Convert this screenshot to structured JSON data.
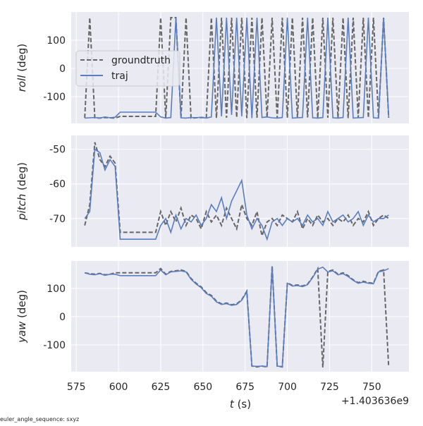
{
  "chart_data": {
    "type": "line",
    "xlabel": "t (s)",
    "x_offset_label": "+1.403636e9",
    "footnote": "euler_angle_sequence: sxyz",
    "xlim": [
      572,
      772
    ],
    "xticks": [
      575,
      600,
      625,
      650,
      675,
      700,
      725,
      750
    ],
    "t_start": 580,
    "t_step": 3,
    "legend": {
      "position": "upper-left",
      "entries": [
        "groundtruth",
        "traj"
      ]
    },
    "colors": {
      "groundtruth": "#666666",
      "traj": "#5a7dbf",
      "background": "#eaeaf2",
      "grid": "#ffffff"
    },
    "panels": [
      {
        "ylabel": "roll (deg)",
        "ylim": [
          -195,
          200
        ],
        "yticks": [
          100,
          0,
          -100
        ],
        "groundtruth": [
          -175,
          180,
          -175,
          -176,
          -174,
          -175,
          -176,
          -170,
          -170,
          -170,
          -170,
          -170,
          -170,
          -170,
          -170,
          180,
          -175,
          180,
          180,
          -175,
          180,
          -176,
          -175,
          -174,
          -175,
          180,
          -176,
          180,
          -175,
          180,
          -174,
          180,
          -176,
          180,
          -175,
          180,
          -175,
          180,
          -176,
          180,
          -175,
          180,
          -175,
          180,
          -174,
          180,
          -176,
          180,
          -175,
          180,
          -175,
          180,
          -176,
          180,
          -175,
          180,
          -175,
          180,
          -176,
          180,
          -175
        ],
        "traj": [
          -176,
          -175,
          -174,
          -176,
          -172,
          -175,
          -173,
          -155,
          -155,
          -155,
          -155,
          -155,
          -155,
          -155,
          -155,
          -172,
          -176,
          -174,
          180,
          -175,
          -176,
          -174,
          -175,
          -173,
          -176,
          -172,
          180,
          -170,
          180,
          -165,
          180,
          -170,
          180,
          -176,
          180,
          -174,
          -172,
          -175,
          -176,
          -174,
          180,
          -176,
          -175,
          -174,
          180,
          -175,
          -176,
          -174,
          180,
          -175,
          -176,
          -174,
          180,
          -176,
          -175,
          -174,
          180,
          -175,
          -176,
          180,
          -172
        ]
      },
      {
        "ylabel": "pitch (deg)",
        "ylim": [
          -78.2,
          -46
        ],
        "yticks": [
          -50,
          -60,
          -70
        ],
        "groundtruth": [
          -72,
          -66,
          -48,
          -53,
          -55,
          -52,
          -54,
          -74,
          -74,
          -74,
          -74,
          -74,
          -74,
          -74,
          -74,
          -68,
          -72,
          -68,
          -71,
          -67,
          -72,
          -69,
          -70,
          -73,
          -68,
          -71,
          -69,
          -72,
          -67,
          -70,
          -73,
          -66,
          -70,
          -72,
          -68,
          -75,
          -71,
          -70,
          -72,
          -69,
          -70,
          -71,
          -68,
          -73,
          -70,
          -72,
          -69,
          -71,
          -70,
          -72,
          -70,
          -71,
          -69,
          -72,
          -70,
          -71,
          -68,
          -72,
          -70,
          -69,
          -70
        ],
        "traj": [
          -70,
          -68,
          -50,
          -51,
          -56,
          -53,
          -55,
          -76,
          -76,
          -76,
          -76,
          -76,
          -76,
          -76,
          -76,
          -72,
          -70,
          -74,
          -69,
          -73,
          -70,
          -71,
          -69,
          -72,
          -70,
          -66,
          -68,
          -64,
          -70,
          -65,
          -62,
          -59,
          -69,
          -73,
          -70,
          -72,
          -76,
          -71,
          -70,
          -72,
          -70,
          -71,
          -70,
          -72,
          -69,
          -71,
          -70,
          -72,
          -68,
          -71,
          -70,
          -69,
          -71,
          -70,
          -68,
          -72,
          -69,
          -71,
          -70,
          -70,
          -69
        ]
      },
      {
        "ylabel": "yaw (deg)",
        "ylim": [
          -195,
          197
        ],
        "yticks": [
          100,
          0,
          -100
        ],
        "groundtruth": [
          155,
          152,
          150,
          153,
          148,
          150,
          155,
          155,
          155,
          155,
          155,
          155,
          155,
          155,
          155,
          170,
          150,
          160,
          162,
          165,
          160,
          135,
          118,
          105,
          85,
          75,
          55,
          45,
          48,
          42,
          45,
          60,
          90,
          -175,
          -178,
          -175,
          -178,
          180,
          -175,
          -178,
          120,
          110,
          112,
          108,
          115,
          140,
          170,
          -180,
          160,
          165,
          150,
          155,
          145,
          130,
          120,
          125,
          120,
          118,
          160,
          165,
          -178
        ],
        "traj": [
          155,
          150,
          148,
          152,
          146,
          150,
          150,
          145,
          145,
          145,
          145,
          145,
          145,
          145,
          145,
          165,
          148,
          158,
          160,
          162,
          158,
          132,
          115,
          102,
          82,
          72,
          52,
          43,
          46,
          40,
          43,
          58,
          88,
          -175,
          -176,
          -175,
          -177,
          178,
          -175,
          -177,
          118,
          108,
          110,
          106,
          113,
          138,
          168,
          175,
          158,
          162,
          148,
          152,
          142,
          128,
          118,
          122,
          118,
          116,
          158,
          162,
          170
        ]
      }
    ]
  }
}
